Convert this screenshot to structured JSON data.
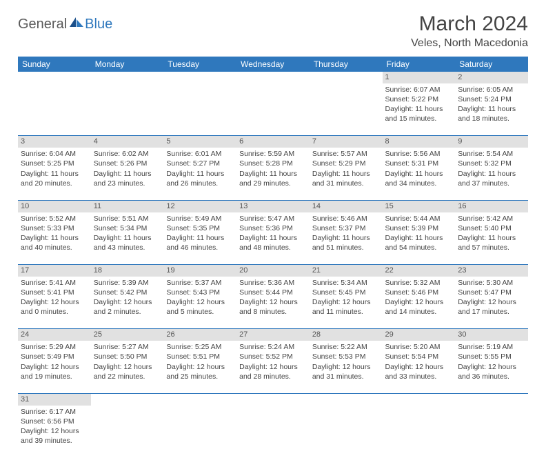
{
  "logo": {
    "textA": "General",
    "textB": "Blue"
  },
  "title": "March 2024",
  "location": "Veles, North Macedonia",
  "colors": {
    "header_bg": "#2f78bd",
    "header_fg": "#ffffff",
    "daynum_bg": "#e1e1e1",
    "cell_border": "#2f78bd",
    "text": "#444444"
  },
  "weekdays": [
    "Sunday",
    "Monday",
    "Tuesday",
    "Wednesday",
    "Thursday",
    "Friday",
    "Saturday"
  ],
  "weeks": [
    [
      null,
      null,
      null,
      null,
      null,
      {
        "n": "1",
        "sr": "6:07 AM",
        "ss": "5:22 PM",
        "dl": "11 hours and 15 minutes."
      },
      {
        "n": "2",
        "sr": "6:05 AM",
        "ss": "5:24 PM",
        "dl": "11 hours and 18 minutes."
      }
    ],
    [
      {
        "n": "3",
        "sr": "6:04 AM",
        "ss": "5:25 PM",
        "dl": "11 hours and 20 minutes."
      },
      {
        "n": "4",
        "sr": "6:02 AM",
        "ss": "5:26 PM",
        "dl": "11 hours and 23 minutes."
      },
      {
        "n": "5",
        "sr": "6:01 AM",
        "ss": "5:27 PM",
        "dl": "11 hours and 26 minutes."
      },
      {
        "n": "6",
        "sr": "5:59 AM",
        "ss": "5:28 PM",
        "dl": "11 hours and 29 minutes."
      },
      {
        "n": "7",
        "sr": "5:57 AM",
        "ss": "5:29 PM",
        "dl": "11 hours and 31 minutes."
      },
      {
        "n": "8",
        "sr": "5:56 AM",
        "ss": "5:31 PM",
        "dl": "11 hours and 34 minutes."
      },
      {
        "n": "9",
        "sr": "5:54 AM",
        "ss": "5:32 PM",
        "dl": "11 hours and 37 minutes."
      }
    ],
    [
      {
        "n": "10",
        "sr": "5:52 AM",
        "ss": "5:33 PM",
        "dl": "11 hours and 40 minutes."
      },
      {
        "n": "11",
        "sr": "5:51 AM",
        "ss": "5:34 PM",
        "dl": "11 hours and 43 minutes."
      },
      {
        "n": "12",
        "sr": "5:49 AM",
        "ss": "5:35 PM",
        "dl": "11 hours and 46 minutes."
      },
      {
        "n": "13",
        "sr": "5:47 AM",
        "ss": "5:36 PM",
        "dl": "11 hours and 48 minutes."
      },
      {
        "n": "14",
        "sr": "5:46 AM",
        "ss": "5:37 PM",
        "dl": "11 hours and 51 minutes."
      },
      {
        "n": "15",
        "sr": "5:44 AM",
        "ss": "5:39 PM",
        "dl": "11 hours and 54 minutes."
      },
      {
        "n": "16",
        "sr": "5:42 AM",
        "ss": "5:40 PM",
        "dl": "11 hours and 57 minutes."
      }
    ],
    [
      {
        "n": "17",
        "sr": "5:41 AM",
        "ss": "5:41 PM",
        "dl": "12 hours and 0 minutes."
      },
      {
        "n": "18",
        "sr": "5:39 AM",
        "ss": "5:42 PM",
        "dl": "12 hours and 2 minutes."
      },
      {
        "n": "19",
        "sr": "5:37 AM",
        "ss": "5:43 PM",
        "dl": "12 hours and 5 minutes."
      },
      {
        "n": "20",
        "sr": "5:36 AM",
        "ss": "5:44 PM",
        "dl": "12 hours and 8 minutes."
      },
      {
        "n": "21",
        "sr": "5:34 AM",
        "ss": "5:45 PM",
        "dl": "12 hours and 11 minutes."
      },
      {
        "n": "22",
        "sr": "5:32 AM",
        "ss": "5:46 PM",
        "dl": "12 hours and 14 minutes."
      },
      {
        "n": "23",
        "sr": "5:30 AM",
        "ss": "5:47 PM",
        "dl": "12 hours and 17 minutes."
      }
    ],
    [
      {
        "n": "24",
        "sr": "5:29 AM",
        "ss": "5:49 PM",
        "dl": "12 hours and 19 minutes."
      },
      {
        "n": "25",
        "sr": "5:27 AM",
        "ss": "5:50 PM",
        "dl": "12 hours and 22 minutes."
      },
      {
        "n": "26",
        "sr": "5:25 AM",
        "ss": "5:51 PM",
        "dl": "12 hours and 25 minutes."
      },
      {
        "n": "27",
        "sr": "5:24 AM",
        "ss": "5:52 PM",
        "dl": "12 hours and 28 minutes."
      },
      {
        "n": "28",
        "sr": "5:22 AM",
        "ss": "5:53 PM",
        "dl": "12 hours and 31 minutes."
      },
      {
        "n": "29",
        "sr": "5:20 AM",
        "ss": "5:54 PM",
        "dl": "12 hours and 33 minutes."
      },
      {
        "n": "30",
        "sr": "5:19 AM",
        "ss": "5:55 PM",
        "dl": "12 hours and 36 minutes."
      }
    ],
    [
      {
        "n": "31",
        "sr": "6:17 AM",
        "ss": "6:56 PM",
        "dl": "12 hours and 39 minutes."
      },
      null,
      null,
      null,
      null,
      null,
      null
    ]
  ],
  "labels": {
    "sunrise": "Sunrise: ",
    "sunset": "Sunset: ",
    "daylight": "Daylight: "
  }
}
